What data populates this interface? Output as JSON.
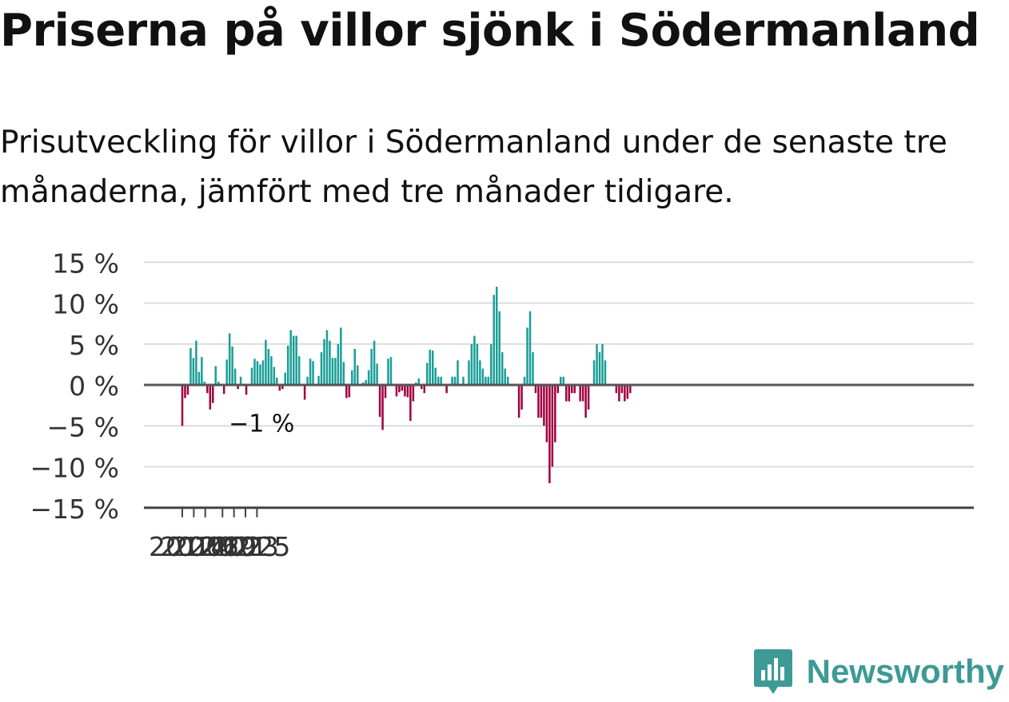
{
  "title": "Priserna på villor sjönk i Södermanland",
  "subtitle": "Prisutveckling för villor i Södermanland under de senaste tre månaderna, jämfört med tre månader tidigare.",
  "brand": {
    "name": "Newsworthy",
    "color": "#3d9a95",
    "icon": "bar-chart-bubble-icon"
  },
  "chart_data": {
    "type": "bar",
    "ylim": [
      -15,
      15
    ],
    "y_ticks": [
      15,
      10,
      5,
      0,
      -5,
      -10,
      -15
    ],
    "y_tick_labels": [
      "15 %",
      "10 %",
      "5 %",
      "0 %",
      "−5 %",
      "−10 %",
      "−15 %"
    ],
    "x_tick_labels": [
      "2012",
      "2014",
      "2016",
      "2019",
      "2021",
      "2023",
      "2025"
    ],
    "x_tick_dates": [
      "2012-01",
      "2014-01",
      "2016-01",
      "2019-01",
      "2021-01",
      "2023-01",
      "2025-01"
    ],
    "start": "2012-01",
    "end": "2025-01",
    "positive_color": "#1a9e98",
    "negative_color": "#a1003f",
    "grid": true,
    "annotation": {
      "text": "−1 %",
      "date": "2025-01",
      "value": -1
    },
    "values": [
      -5,
      -1.6,
      -1.2,
      4.5,
      3.3,
      5.4,
      1.6,
      3.4,
      0.4,
      -1,
      -3,
      -2.2,
      2.3,
      0.4,
      0.1,
      -1.1,
      3.1,
      6.3,
      4.7,
      2,
      -0.5,
      1,
      0,
      -1.2,
      0,
      2.1,
      3.2,
      2.9,
      2.5,
      3,
      5.5,
      4.4,
      3.5,
      2.2,
      0.9,
      -0.7,
      -0.5,
      1.5,
      4.8,
      6.7,
      6,
      6,
      3.5,
      0,
      -1.8,
      1,
      3.2,
      2.9,
      0,
      1.1,
      4,
      5.6,
      6.7,
      5.4,
      3.3,
      3.3,
      5,
      7,
      2.8,
      -1.6,
      -1.5,
      1.8,
      4.4,
      2.4,
      0,
      0.3,
      0.6,
      1.8,
      4.4,
      5.4,
      2.6,
      -3.9,
      -5.5,
      -1.6,
      3.2,
      3.4,
      0.1,
      -1.4,
      -0.9,
      -0.7,
      -1.4,
      -1.5,
      -4.4,
      -2,
      0.3,
      0.8,
      -0.5,
      -1,
      2.7,
      4.3,
      4.2,
      2.1,
      1,
      1,
      0,
      -1,
      0,
      1,
      1,
      3,
      0,
      1,
      0,
      3,
      5,
      6,
      5,
      3,
      2,
      1,
      1,
      5,
      11,
      12,
      9,
      4,
      2,
      1,
      0,
      0,
      0,
      -4,
      -3,
      1,
      7,
      9,
      4,
      -1,
      -4,
      -4,
      -5,
      -7,
      -12,
      -10,
      -7,
      -1,
      1,
      1,
      -2,
      -2,
      -1,
      -1,
      0,
      -2,
      -2,
      -4,
      -3,
      0,
      3,
      5,
      4,
      5,
      3,
      0,
      0,
      0,
      -1,
      -2,
      -1,
      -2,
      -1.7,
      -1
    ]
  }
}
